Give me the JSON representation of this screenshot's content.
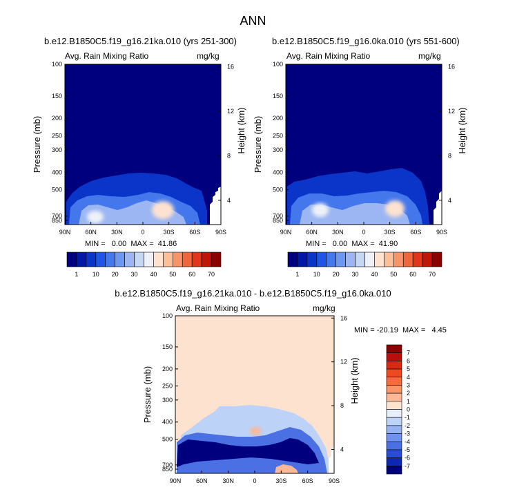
{
  "title": "ANN",
  "chart_data": [
    {
      "type": "heatmap",
      "title": "b.e12.B1850C5.f19_g16.21ka.010 (yrs 251-300)",
      "field_name": "Avg. Rain Mixing Ratio",
      "units": "mg/kg",
      "xlabel": "",
      "ylabel": "Pressure (mb)",
      "y2label": "Height (km)",
      "x_ticks": [
        "90N",
        "60N",
        "30N",
        "0",
        "30S",
        "60S",
        "90S"
      ],
      "y_ticks": [
        "100",
        "150",
        "200",
        "250",
        "300",
        "400",
        "500",
        "700",
        "850"
      ],
      "y2_ticks": [
        "16",
        "12",
        "8",
        "4"
      ],
      "y_scale": "log",
      "ylim": [
        1000,
        100
      ],
      "stats": "MIN =   0.00  MAX =  41.86",
      "min": 0.0,
      "max": 41.86
    },
    {
      "type": "heatmap",
      "title": "b.e12.B1850C5.f19_g16.0ka.010 (yrs 551-600)",
      "field_name": "Avg. Rain Mixing Ratio",
      "units": "mg/kg",
      "xlabel": "",
      "ylabel": "Pressure (mb)",
      "y2label": "Height (km)",
      "x_ticks": [
        "90N",
        "60N",
        "30N",
        "0",
        "30S",
        "60S",
        "90S"
      ],
      "y_ticks": [
        "100",
        "150",
        "200",
        "250",
        "300",
        "400",
        "500",
        "700",
        "850"
      ],
      "y2_ticks": [
        "16",
        "12",
        "8",
        "4"
      ],
      "y_scale": "log",
      "ylim": [
        1000,
        100
      ],
      "stats": "MIN =   0.00  MAX =  41.90",
      "min": 0.0,
      "max": 41.9
    },
    {
      "type": "heatmap",
      "title": "b.e12.B1850C5.f19_g16.21ka.010 - b.e12.B1850C5.f19_g16.0ka.010",
      "field_name": "Avg. Rain Mixing Ratio",
      "units": "mg/kg",
      "xlabel": "",
      "ylabel": "Pressure (mb)",
      "y2label": "Height (km)",
      "x_ticks": [
        "90N",
        "60N",
        "30N",
        "0",
        "30S",
        "60S",
        "90S"
      ],
      "y_ticks": [
        "100",
        "150",
        "200",
        "250",
        "300",
        "400",
        "500",
        "700",
        "850"
      ],
      "y2_ticks": [
        "16",
        "12",
        "8",
        "4"
      ],
      "y_scale": "log",
      "ylim": [
        1000,
        100
      ],
      "stats": "MIN = -20.19  MAX =   4.45",
      "min": -20.19,
      "max": 4.45
    }
  ],
  "colorbars": {
    "top_left": {
      "labels": [
        "1",
        "10",
        "20",
        "30",
        "40",
        "50",
        "60",
        "70"
      ],
      "colors": [
        "#00007f",
        "#0017a8",
        "#0a35c8",
        "#1f55e6",
        "#4477ec",
        "#6e97f0",
        "#9bb6f2",
        "#c6d7f5",
        "#eef2f8",
        "#fde2cf",
        "#fbbf9c",
        "#f6946b",
        "#ef663f",
        "#e0361a",
        "#c1150a",
        "#8b0000"
      ]
    },
    "top_right": {
      "labels": [
        "1",
        "10",
        "20",
        "30",
        "40",
        "50",
        "60",
        "70"
      ],
      "colors": [
        "#00007f",
        "#0017a8",
        "#0a35c8",
        "#1f55e6",
        "#4477ec",
        "#6e97f0",
        "#9bb6f2",
        "#c6d7f5",
        "#eef2f8",
        "#fde2cf",
        "#fbbf9c",
        "#f6946b",
        "#ef663f",
        "#e0361a",
        "#c1150a",
        "#8b0000"
      ]
    },
    "difference": {
      "labels": [
        "7",
        "6",
        "5",
        "4",
        "3",
        "2",
        "1",
        "0",
        "-1",
        "-2",
        "-3",
        "-4",
        "-5",
        "-6",
        "-7"
      ],
      "colors": [
        "#8b0000",
        "#b80f0a",
        "#d82a12",
        "#ee4a22",
        "#f76a3a",
        "#fb9468",
        "#fdb895",
        "#fde3cf",
        "#e5eef9",
        "#bcd2f6",
        "#95b2f1",
        "#6f92ec",
        "#4b70e4",
        "#2a4cd6",
        "#0d27b5",
        "#00007f"
      ]
    }
  }
}
